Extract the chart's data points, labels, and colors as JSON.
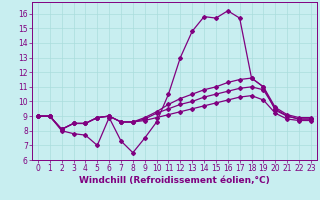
{
  "background_color": "#c8eef0",
  "grid_color": "#aadddd",
  "line_color": "#800080",
  "marker": "D",
  "markersize": 2,
  "linewidth": 0.9,
  "xlabel": "Windchill (Refroidissement éolien,°C)",
  "xlabel_fontsize": 6.5,
  "xtick_fontsize": 5.5,
  "ytick_fontsize": 5.5,
  "xlim": [
    -0.5,
    23.5
  ],
  "ylim": [
    6,
    16.8
  ],
  "yticks": [
    6,
    7,
    8,
    9,
    10,
    11,
    12,
    13,
    14,
    15,
    16
  ],
  "xticks": [
    0,
    1,
    2,
    3,
    4,
    5,
    6,
    7,
    8,
    9,
    10,
    11,
    12,
    13,
    14,
    15,
    16,
    17,
    18,
    19,
    20,
    21,
    22,
    23
  ],
  "series": [
    [
      9.0,
      9.0,
      8.0,
      7.8,
      7.7,
      7.0,
      8.9,
      7.3,
      6.5,
      7.5,
      8.6,
      10.5,
      13.0,
      14.8,
      15.8,
      15.7,
      16.2,
      15.7,
      11.6,
      11.0,
      9.4,
      9.0,
      8.8,
      8.8
    ],
    [
      9.0,
      9.0,
      8.1,
      8.5,
      8.5,
      8.9,
      9.0,
      8.6,
      8.6,
      8.8,
      9.2,
      9.5,
      9.8,
      10.0,
      10.3,
      10.5,
      10.7,
      10.9,
      11.0,
      10.8,
      9.5,
      9.0,
      8.8,
      8.8
    ],
    [
      9.0,
      9.0,
      8.1,
      8.5,
      8.5,
      8.9,
      9.0,
      8.6,
      8.6,
      8.9,
      9.3,
      9.8,
      10.2,
      10.5,
      10.8,
      11.0,
      11.3,
      11.5,
      11.6,
      11.0,
      9.6,
      9.1,
      8.9,
      8.9
    ],
    [
      9.0,
      9.0,
      8.1,
      8.5,
      8.5,
      8.9,
      9.0,
      8.6,
      8.6,
      8.7,
      8.9,
      9.1,
      9.3,
      9.5,
      9.7,
      9.9,
      10.1,
      10.3,
      10.4,
      10.1,
      9.2,
      8.8,
      8.7,
      8.7
    ]
  ]
}
